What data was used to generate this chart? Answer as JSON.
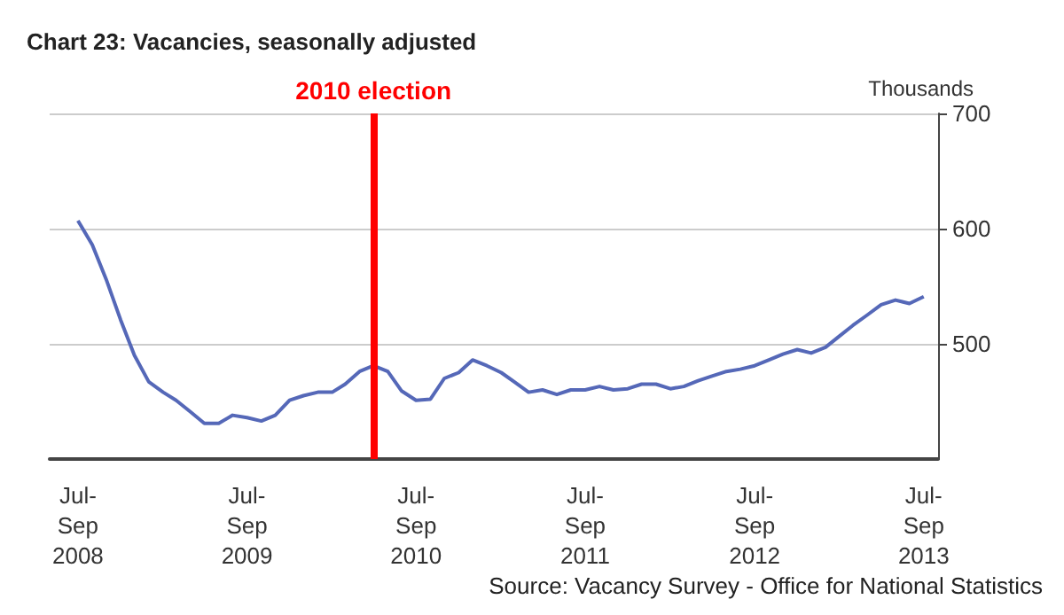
{
  "chart_data": {
    "type": "line",
    "title": "Chart 23: Vacancies, seasonally adjusted",
    "ylabel": "Thousands",
    "x": [
      "2008-08",
      "2008-09",
      "2008-10",
      "2008-11",
      "2008-12",
      "2009-01",
      "2009-02",
      "2009-03",
      "2009-04",
      "2009-05",
      "2009-06",
      "2009-07",
      "2009-08",
      "2009-09",
      "2009-10",
      "2009-11",
      "2009-12",
      "2010-01",
      "2010-02",
      "2010-03",
      "2010-04",
      "2010-05",
      "2010-06",
      "2010-07",
      "2010-08",
      "2010-09",
      "2010-10",
      "2010-11",
      "2010-12",
      "2011-01",
      "2011-02",
      "2011-03",
      "2011-04",
      "2011-05",
      "2011-06",
      "2011-07",
      "2011-08",
      "2011-09",
      "2011-10",
      "2011-11",
      "2011-12",
      "2012-01",
      "2012-02",
      "2012-03",
      "2012-04",
      "2012-05",
      "2012-06",
      "2012-07",
      "2012-08",
      "2012-09",
      "2012-10",
      "2012-11",
      "2012-12",
      "2013-01",
      "2013-02",
      "2013-03",
      "2013-04",
      "2013-05",
      "2013-06",
      "2013-07",
      "2013-08"
    ],
    "series": [
      {
        "color": "#5568b8",
        "values": [
          607,
          586,
          556,
          521,
          490,
          467,
          458,
          451,
          441,
          431,
          431,
          438,
          436,
          433,
          438,
          451,
          455,
          458,
          458,
          465,
          476,
          481,
          476,
          459,
          451,
          452,
          470,
          475,
          486,
          481,
          475,
          467,
          458,
          460,
          456,
          460,
          460,
          463,
          460,
          461,
          465,
          465,
          461,
          463,
          468,
          472,
          476,
          478,
          481,
          486,
          491,
          495,
          492,
          497,
          507,
          516,
          525,
          534,
          538,
          535,
          541
        ]
      }
    ],
    "xlim": [
      "2008-06",
      "2013-09"
    ],
    "xticks": [
      {
        "value": "2008-08",
        "label": "Jul-Sep 2008"
      },
      {
        "value": "2009-08",
        "label": "Jul-Sep 2009"
      },
      {
        "value": "2010-08",
        "label": "Jul-Sep 2010"
      },
      {
        "value": "2011-08",
        "label": "Jul-Sep 2011"
      },
      {
        "value": "2012-08",
        "label": "Jul-Sep 2012"
      },
      {
        "value": "2013-08",
        "label": "Jul-Sep 2013"
      }
    ],
    "ylim": [
      400,
      700
    ],
    "yticks": [
      500,
      600,
      700
    ],
    "grid": "y",
    "marker": "none",
    "line_style": "solid",
    "ref_lines": [
      {
        "axis": "x",
        "value": "2010-05",
        "label": "2010 election",
        "color": "#ff0000"
      }
    ],
    "annotations": [
      "Source: Vacancy Survey - Office for National Statistics"
    ]
  }
}
